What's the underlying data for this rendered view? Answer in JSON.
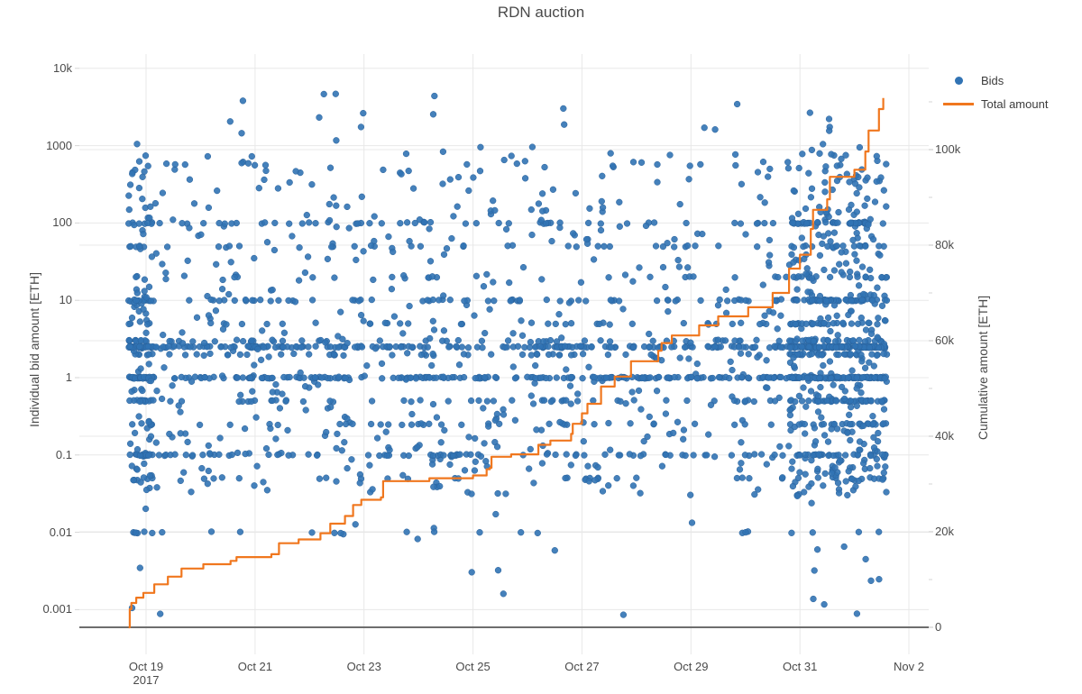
{
  "title": "RDN auction",
  "colors": {
    "bids_marker": "#3173b4",
    "bids_marker_edge": "#2a629c",
    "total_line": "#f0771e",
    "grid": "#e8e8e8",
    "zero_line": "#6e6e6e",
    "text": "#4a4a4a",
    "background": "#ffffff"
  },
  "legend": {
    "items": [
      {
        "label": "Bids",
        "type": "marker",
        "color": "#3173b4"
      },
      {
        "label": "Total amount",
        "type": "line",
        "color": "#f0771e"
      }
    ]
  },
  "axes": {
    "x": {
      "kind": "date",
      "year_sublabel": "2017",
      "ticks": [
        {
          "label": "Oct 19",
          "sublabel": "2017",
          "day": 0
        },
        {
          "label": "Oct 21",
          "day": 2
        },
        {
          "label": "Oct 23",
          "day": 4
        },
        {
          "label": "Oct 25",
          "day": 6
        },
        {
          "label": "Oct 27",
          "day": 8
        },
        {
          "label": "Oct 29",
          "day": 10
        },
        {
          "label": "Oct 31",
          "day": 12
        },
        {
          "label": "Nov 2",
          "day": 14
        }
      ]
    },
    "y_left": {
      "title": "Individual bid amount [ETH]",
      "scale": "log",
      "ticks": [
        {
          "label": "10k",
          "value": 10000
        },
        {
          "label": "1000",
          "value": 1000
        },
        {
          "label": "100",
          "value": 100
        },
        {
          "label": "10",
          "value": 10
        },
        {
          "label": "1",
          "value": 1
        },
        {
          "label": "0.1",
          "value": 0.1
        },
        {
          "label": "0.01",
          "value": 0.01
        },
        {
          "label": "0.001",
          "value": 0.001
        }
      ]
    },
    "y_right": {
      "title": "Cumulative amount [ETH]",
      "scale": "linear",
      "ticks": [
        {
          "label": "0",
          "value": 0
        },
        {
          "label": "20k",
          "value": 20000
        },
        {
          "label": "40k",
          "value": 40000
        },
        {
          "label": "60k",
          "value": 60000
        },
        {
          "label": "80k",
          "value": 80000
        },
        {
          "label": "100k",
          "value": 100000
        }
      ],
      "minor_tick_values": [
        10000,
        30000,
        50000,
        70000,
        90000,
        110000
      ]
    }
  },
  "chart_data": {
    "type": "scatter",
    "title": "RDN auction",
    "x_range": [
      "2017-10-18 16:00",
      "2017-11-02 00:00"
    ],
    "series_names": [
      "Bids",
      "Total amount"
    ],
    "final_total_eth": 110800,
    "bid_value_range_eth": [
      0.0008,
      5000
    ],
    "total_amount_line": {
      "name": "Total amount",
      "axis": "right",
      "units": "ETH",
      "interpolation": "step-after",
      "points_day_value": [
        [
          -0.32,
          0
        ],
        [
          -0.3,
          3800
        ],
        [
          -0.27,
          5100
        ],
        [
          -0.18,
          6200
        ],
        [
          -0.05,
          7200
        ],
        [
          0.15,
          9000
        ],
        [
          0.4,
          10600
        ],
        [
          0.65,
          12300
        ],
        [
          1.05,
          13200
        ],
        [
          1.55,
          13900
        ],
        [
          1.66,
          14700
        ],
        [
          2.3,
          15300
        ],
        [
          2.44,
          17600
        ],
        [
          2.8,
          18400
        ],
        [
          3.2,
          19700
        ],
        [
          3.38,
          21700
        ],
        [
          3.65,
          23300
        ],
        [
          3.8,
          25600
        ],
        [
          3.95,
          26700
        ],
        [
          4.31,
          27200
        ],
        [
          4.35,
          30600
        ],
        [
          5.2,
          31200
        ],
        [
          6.0,
          31800
        ],
        [
          6.25,
          33100
        ],
        [
          6.31,
          33400
        ],
        [
          6.34,
          35700
        ],
        [
          6.7,
          36200
        ],
        [
          7.2,
          38200
        ],
        [
          7.42,
          39100
        ],
        [
          7.8,
          40500
        ],
        [
          7.83,
          42600
        ],
        [
          8.0,
          44800
        ],
        [
          8.1,
          46800
        ],
        [
          8.35,
          50400
        ],
        [
          8.6,
          52500
        ],
        [
          8.9,
          55700
        ],
        [
          9.4,
          57900
        ],
        [
          9.46,
          59500
        ],
        [
          9.65,
          61100
        ],
        [
          10.15,
          63200
        ],
        [
          10.5,
          65100
        ],
        [
          11.05,
          67000
        ],
        [
          11.5,
          70000
        ],
        [
          11.8,
          75100
        ],
        [
          12.0,
          78000
        ],
        [
          12.2,
          83400
        ],
        [
          12.24,
          87400
        ],
        [
          12.5,
          89600
        ],
        [
          12.55,
          94300
        ],
        [
          13.0,
          95800
        ],
        [
          13.2,
          99600
        ],
        [
          13.26,
          104000
        ],
        [
          13.45,
          108500
        ],
        [
          13.53,
          110800
        ]
      ]
    },
    "bids_scatter_model": {
      "comment": "Approx. 2400 individual bids, log-distributed with strong horizontal bands at round ETH amounts; dense vertical clusters at auction start (Oct 18-19) and auction end (Oct 30 - Nov 1).",
      "seed": 1337,
      "n_points": 2400,
      "marker_size_px": 7,
      "time_day_clusters": [
        {
          "from": -0.32,
          "to": 0.12,
          "weight": 0.08
        },
        {
          "from": 11.8,
          "to": 13.6,
          "weight": 0.28
        },
        {
          "from": -0.3,
          "to": 13.6,
          "weight": 0.64
        }
      ],
      "value_bands_eth": [
        {
          "value": 2.5,
          "weight": 0.13
        },
        {
          "value": 1.0,
          "weight": 0.11
        },
        {
          "value": 10,
          "weight": 0.05
        },
        {
          "value": 0.1,
          "weight": 0.05
        },
        {
          "value": 100,
          "weight": 0.035
        },
        {
          "value": 0.5,
          "weight": 0.04
        },
        {
          "value": 5,
          "weight": 0.03
        },
        {
          "value": 2,
          "weight": 0.035
        },
        {
          "value": 3,
          "weight": 0.03
        },
        {
          "value": 0.25,
          "weight": 0.025
        },
        {
          "value": 50,
          "weight": 0.02
        },
        {
          "value": 20,
          "weight": 0.015
        },
        {
          "value": 0.05,
          "weight": 0.015
        },
        {
          "value": 0.01,
          "weight": 0.008
        },
        {
          "log_uniform": [
            0.03,
            800
          ],
          "weight": 0.385
        },
        {
          "log_uniform": [
            800,
            5000
          ],
          "weight": 0.012
        },
        {
          "log_uniform": [
            0.0008,
            0.03
          ],
          "weight": 0.013
        }
      ],
      "band_jitter_log10": 0.02
    }
  }
}
